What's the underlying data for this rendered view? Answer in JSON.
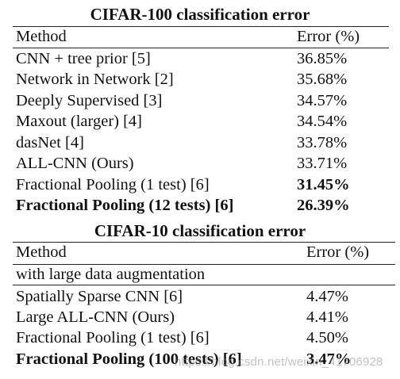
{
  "table1": {
    "title": "CIFAR-100 classification error",
    "header": {
      "method": "Method",
      "error": "Error (%)"
    },
    "rows": [
      {
        "method": "CNN + tree prior [5]",
        "error": "36.85%"
      },
      {
        "method": "Network in Network [2]",
        "error": "35.68%"
      },
      {
        "method": "Deeply Supervised [3]",
        "error": "34.57%"
      },
      {
        "method": "Maxout (larger) [4]",
        "error": "34.54%"
      },
      {
        "method": "dasNet [4]",
        "error": "33.78%"
      },
      {
        "method": "ALL-CNN (Ours)",
        "error": "33.71%"
      },
      {
        "method": "Fractional Pooling (1 test) [6]",
        "error": "31.45%"
      },
      {
        "method": "Fractional Pooling (12 tests) [6]",
        "error": "26.39%"
      }
    ]
  },
  "table2": {
    "title": "CIFAR-10 classification error",
    "header": {
      "method": "Method",
      "error": "Error (%)"
    },
    "group_label": "with large data augmentation",
    "rows": [
      {
        "method": "Spatially Sparse CNN [6]",
        "error": "4.47%"
      },
      {
        "method": "Large ALL-CNN (Ours)",
        "error": "4.41%"
      },
      {
        "method": "Fractional Pooling (1 test) [6]",
        "error": "4.50%"
      },
      {
        "method": "Fractional Pooling (100 tests) [6]",
        "error": "3.47%"
      }
    ]
  },
  "watermark": "https://blog.csdn.net/weixin_41706928"
}
